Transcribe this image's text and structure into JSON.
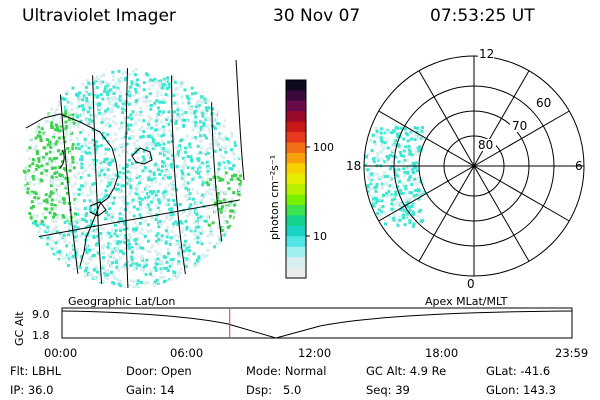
{
  "header": {
    "title": "Ultraviolet Imager",
    "date": "30 Nov 07",
    "time": "07:53:25 UT"
  },
  "maps": {
    "left_label": "Geographic Lat/Lon",
    "right_label": "Apex MLat/MLT"
  },
  "colorbar": {
    "unit_label": "photon cm⁻²s⁻¹",
    "ticks": [
      {
        "label": "100",
        "value": 100
      },
      {
        "label": "10",
        "value": 10
      }
    ],
    "colors": [
      "#0f0a1e",
      "#3a0a3e",
      "#6a0a4a",
      "#9a0a2a",
      "#c81818",
      "#e83a1e",
      "#f36e14",
      "#f7a00c",
      "#f7d200",
      "#e6ee00",
      "#b4f000",
      "#78f000",
      "#3ce250",
      "#14d28c",
      "#18d2c4",
      "#50e6e6",
      "#a0f0f0",
      "#d8f0f0",
      "#ebebeb"
    ]
  },
  "polar": {
    "ring_labels": [
      "80",
      "70",
      "60"
    ],
    "mlt_labels": {
      "top": "12",
      "bottom": "0",
      "left": "18",
      "right": "6"
    }
  },
  "timeline": {
    "axis_label": "GC Alt",
    "y_top": "9.0",
    "y_bottom": "1.8",
    "ticks": [
      "00:00",
      "06:00",
      "12:00",
      "18:00",
      "23:59"
    ],
    "marker_time_hours": 7.89
  },
  "info": {
    "filter": {
      "label": "Flt:",
      "value": "LBHL"
    },
    "ip": {
      "label": "IP:",
      "value": "36.0"
    },
    "door": {
      "label": "Door:",
      "value": "Open"
    },
    "gain": {
      "label": "Gain:",
      "value": "14"
    },
    "mode": {
      "label": "Mode:",
      "value": "Normal"
    },
    "dsp": {
      "label": "Dsp:",
      "value": "5.0"
    },
    "gc_alt": {
      "label": "GC Alt:",
      "value": "4.9 Re"
    },
    "seq": {
      "label": "Seq:",
      "value": "39"
    },
    "glat": {
      "label": "GLat:",
      "value": "-41.6"
    },
    "glon": {
      "label": "GLon:",
      "value": "143.3"
    }
  },
  "style": {
    "cyan": "#3ce6d2",
    "light": "#d8eeee",
    "green": "#3cd250",
    "marker": "#d23c3c"
  }
}
